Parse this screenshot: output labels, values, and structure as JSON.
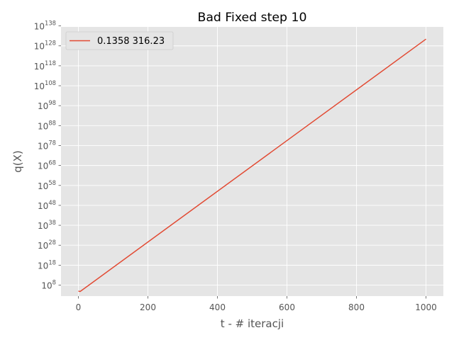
{
  "chart_data": {
    "type": "line",
    "title": "Bad Fixed step 10",
    "xlabel": "t - # iteracji",
    "ylabel": "q(X)",
    "xlim": [
      -50,
      1050
    ],
    "ylim": [
      2.5,
      137.5
    ],
    "yscale": "log",
    "grid": true,
    "legend": "top-left",
    "x_ticks": [
      0,
      200,
      400,
      600,
      800,
      1000
    ],
    "y_tick_exponents": [
      8,
      18,
      28,
      38,
      48,
      58,
      68,
      78,
      88,
      98,
      108,
      118,
      128,
      138
    ],
    "y_tick_base": "10",
    "series": [
      {
        "name": "0.1358 316.23",
        "color": "#E24A33",
        "x": [
          0,
          5,
          1000
        ],
        "y_log10": [
          5.0,
          4.8,
          131.4
        ]
      }
    ]
  }
}
